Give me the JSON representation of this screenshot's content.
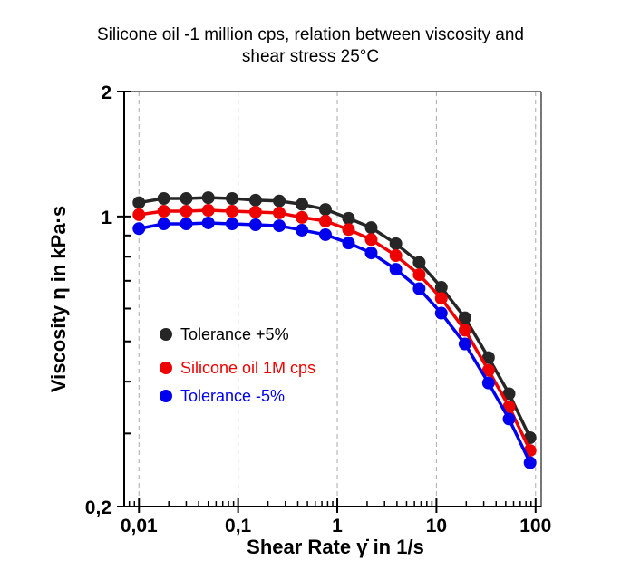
{
  "chart_data": {
    "type": "line",
    "title": "Silicone oil -1 million cps, relation between viscosity and shear stress 25°C",
    "title_lines": [
      "Silicone oil -1 million cps, relation between viscosity and",
      "shear stress 25°C"
    ],
    "xlabel": "Shear Rate γ̇ in 1/s",
    "ylabel": "Viscosity η in kPa·s",
    "xscale": "log",
    "yscale": "log",
    "xlim": [
      0.0071,
      114
    ],
    "ylim": [
      0.2,
      2
    ],
    "x_ticks": [
      {
        "value": 0.01,
        "label": "0,01"
      },
      {
        "value": 0.1,
        "label": "0,1"
      },
      {
        "value": 1,
        "label": "1"
      },
      {
        "value": 10,
        "label": "10"
      },
      {
        "value": 100,
        "label": "100"
      }
    ],
    "y_ticks": [
      {
        "value": 0.2,
        "label": "0,2"
      },
      {
        "value": 1,
        "label": "1"
      },
      {
        "value": 2,
        "label": "2"
      }
    ],
    "grid": "vertical dashed at decades",
    "legend_placement": "center-left",
    "x": [
      0.01,
      0.0178,
      0.03,
      0.05,
      0.087,
      0.15,
      0.26,
      0.44,
      0.76,
      1.3,
      2.2,
      3.9,
      6.7,
      11.2,
      19.4,
      33.5,
      54,
      88
    ],
    "series": [
      {
        "name": "Tolerance +5%",
        "color": "#262626",
        "values": [
          1.08,
          1.105,
          1.105,
          1.11,
          1.105,
          1.095,
          1.09,
          1.07,
          1.04,
          0.99,
          0.94,
          0.86,
          0.775,
          0.675,
          0.57,
          0.457,
          0.374,
          0.293
        ]
      },
      {
        "name": "Silicone oil 1M cps",
        "color": "#ee0000",
        "values": [
          1.01,
          1.03,
          1.03,
          1.035,
          1.03,
          1.025,
          1.02,
          0.995,
          0.975,
          0.93,
          0.88,
          0.805,
          0.724,
          0.635,
          0.532,
          0.426,
          0.348,
          0.273
        ]
      },
      {
        "name": "Tolerance -5%",
        "color": "#0000ee",
        "values": [
          0.935,
          0.96,
          0.96,
          0.965,
          0.96,
          0.955,
          0.95,
          0.927,
          0.904,
          0.863,
          0.817,
          0.746,
          0.67,
          0.585,
          0.493,
          0.397,
          0.325,
          0.255
        ]
      }
    ]
  }
}
